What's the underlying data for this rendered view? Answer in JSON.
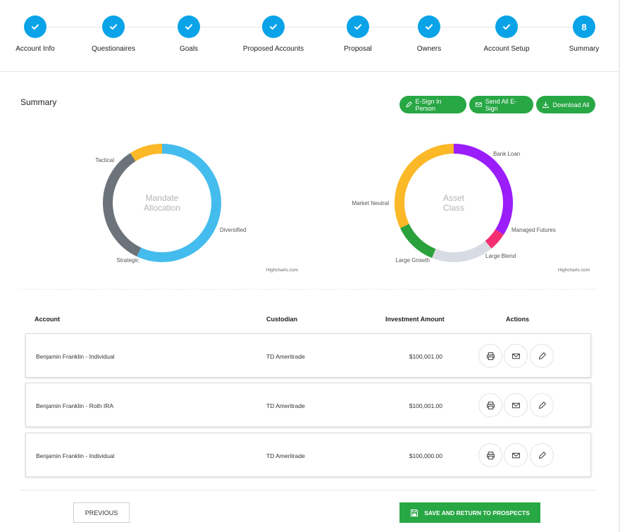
{
  "stepper": {
    "steps": [
      {
        "label": "Account Info",
        "state": "done"
      },
      {
        "label": "Questionaires",
        "state": "done"
      },
      {
        "label": "Goals",
        "state": "done"
      },
      {
        "label": "Proposed Accounts",
        "state": "done"
      },
      {
        "label": "Proposal",
        "state": "done"
      },
      {
        "label": "Owners",
        "state": "done"
      },
      {
        "label": "Account Setup",
        "state": "done"
      },
      {
        "label": "Summary",
        "state": "current",
        "number": "8"
      }
    ],
    "check_icon": "check-icon",
    "accent": "#0aa3e8"
  },
  "summary": {
    "title": "Summary",
    "buttons": {
      "esign_in_person": "E-Sign In Person",
      "send_all_esign": "Send All E-Sign",
      "download_all": "Download All"
    },
    "button_color": "#28a745"
  },
  "chart_data": [
    {
      "type": "pie",
      "title": "Mandate Allocation",
      "credit": "Highcharts.com",
      "categories": [
        "Tactical",
        "Diversified",
        "Strategic"
      ],
      "values": [
        57,
        34,
        9
      ],
      "colors": [
        "#45bcee",
        "#6c737a",
        "#fbb827"
      ]
    },
    {
      "type": "pie",
      "title": "Asset Class",
      "credit": "Highcharts.com",
      "categories": [
        "Bank Loan",
        "Managed Futures",
        "Large Blend",
        "Large Growth",
        "Market Neutral"
      ],
      "values": [
        34,
        5,
        17,
        12,
        32
      ],
      "colors": [
        "#9a1dfa",
        "#f42f70",
        "#d8dbe3",
        "#2aa13a",
        "#fbb827"
      ]
    }
  ],
  "table": {
    "headers": {
      "account": "Account",
      "custodian": "Custodian",
      "amount": "Investment Amount",
      "actions": "Actions"
    },
    "rows": [
      {
        "account": "Benjamin Franklin - Individual",
        "custodian": "TD Ameritrade",
        "amount": "$100,001.00"
      },
      {
        "account": "Benjamin Franklin - Roth IRA",
        "custodian": "TD Ameritrade",
        "amount": "$100,001.00"
      },
      {
        "account": "Benjamin Franklin - Individual",
        "custodian": "TD Ameritrade",
        "amount": "$100,000.00"
      }
    ],
    "action_icons": [
      "printer-icon",
      "mail-icon",
      "pencil-icon"
    ]
  },
  "footer": {
    "previous": "PREVIOUS",
    "save": "SAVE AND RETURN TO PROSPECTS"
  }
}
